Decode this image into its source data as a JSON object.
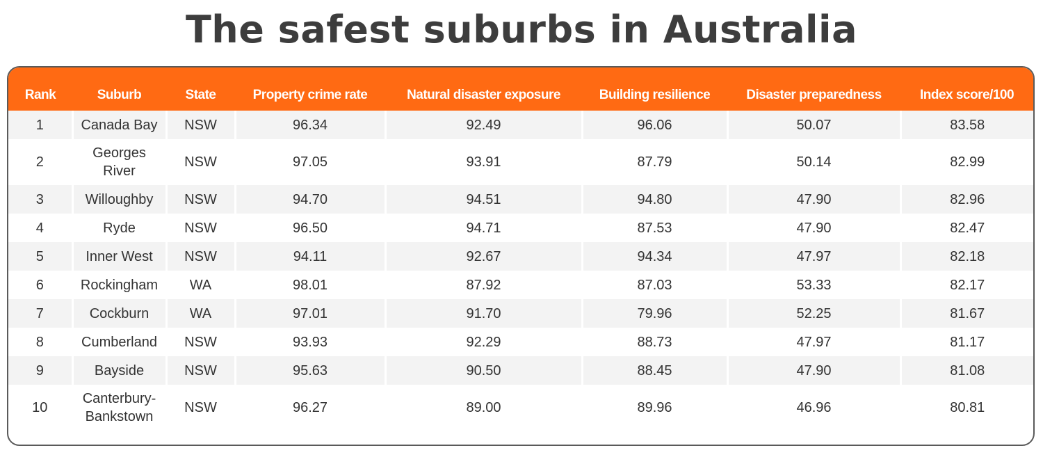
{
  "title": "The safest suburbs in Australia",
  "colors": {
    "header_bg": "#ff6a13",
    "header_text": "#ffffff",
    "title_text": "#3d3d3d",
    "row_stripe": "#f3f3f3",
    "border": "#5a5a5a"
  },
  "chart_data": {
    "type": "table",
    "title": "The safest suburbs in Australia",
    "columns": [
      "Rank",
      "Suburb",
      "State",
      "Property crime rate",
      "Natural disaster exposure",
      "Building resilience",
      "Disaster preparedness",
      "Index score/100"
    ],
    "rows": [
      [
        "1",
        "Canada Bay",
        "NSW",
        "96.34",
        "92.49",
        "96.06",
        "50.07",
        "83.58"
      ],
      [
        "2",
        "Georges River",
        "NSW",
        "97.05",
        "93.91",
        "87.79",
        "50.14",
        "82.99"
      ],
      [
        "3",
        "Willoughby",
        "NSW",
        "94.70",
        "94.51",
        "94.80",
        "47.90",
        "82.96"
      ],
      [
        "4",
        "Ryde",
        "NSW",
        "96.50",
        "94.71",
        "87.53",
        "47.90",
        "82.47"
      ],
      [
        "5",
        "Inner West",
        "NSW",
        "94.11",
        "92.67",
        "94.34",
        "47.97",
        "82.18"
      ],
      [
        "6",
        "Rockingham",
        "WA",
        "98.01",
        "87.92",
        "87.03",
        "53.33",
        "82.17"
      ],
      [
        "7",
        "Cockburn",
        "WA",
        "97.01",
        "91.70",
        "79.96",
        "52.25",
        "81.67"
      ],
      [
        "8",
        "Cumberland",
        "NSW",
        "93.93",
        "92.29",
        "88.73",
        "47.97",
        "81.17"
      ],
      [
        "9",
        "Bayside",
        "NSW",
        "95.63",
        "90.50",
        "88.45",
        "47.90",
        "81.08"
      ],
      [
        "10",
        "Canterbury-Bankstown",
        "NSW",
        "96.27",
        "89.00",
        "89.96",
        "46.96",
        "80.81"
      ]
    ]
  }
}
